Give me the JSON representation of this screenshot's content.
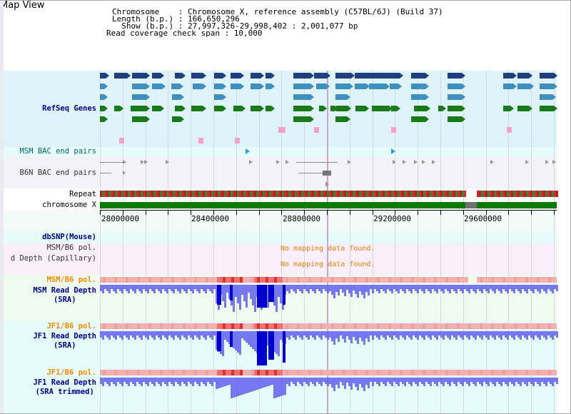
{
  "title": "Map View",
  "info": {
    "line1": "Chromosome    : Chromosome X, reference assembly (C57BL/6J) (Build 37)",
    "line2": "Length (b.p.) : 166,650,296",
    "line3": "  Show (b.p.) : 27,997,326-29,998,402 : 2,001,077 bp",
    "line4": "Read coverage check span : 10,000"
  },
  "tracks": {
    "refseq": "RefSeq Genes",
    "msm_bac": "MSM BAC end pairs",
    "b6n_bac": "B6N BAC end pairs",
    "repeat": "Repeat",
    "chrom": "chromosome X",
    "dbsnp": "dbSNP(Mouse)",
    "msm_b6_pol_1": "MSM/B6 pol.",
    "depth_cap": "d Depth (Capillary)",
    "msm_b6_pol_2": "MSM/B6 pol.",
    "msm_depth_a": "MSM Read Depth",
    "msm_depth_b": "(SRA)",
    "jf1_pol_1": "JF1/B6 pol.",
    "jf1_depth_a": "JF1 Read Depth",
    "jf1_depth_b": "(SRA)",
    "jf1_pol_2": "JF1/B6 pol.",
    "jf1_trim_a": "JF1 Read Depth",
    "jf1_trim_b": "(SRA trimmed)"
  },
  "no_data_1": "No mapping data found.",
  "no_data_2": "No mapping data found.",
  "ticks": [
    "28000000",
    "28400000",
    "28800000",
    "29200000",
    "29600000"
  ],
  "colors": {
    "navy_gene": "#1f3f7f",
    "blue_gene": "#3f8fbf",
    "green_gene": "#1a7a1a",
    "pink": "#f7a0c8",
    "repeat_red": "#e02020",
    "chrom_green": "#0a7a0a",
    "depth_blue": "#6060f0",
    "pol_pink": "#f7b0b0"
  }
}
